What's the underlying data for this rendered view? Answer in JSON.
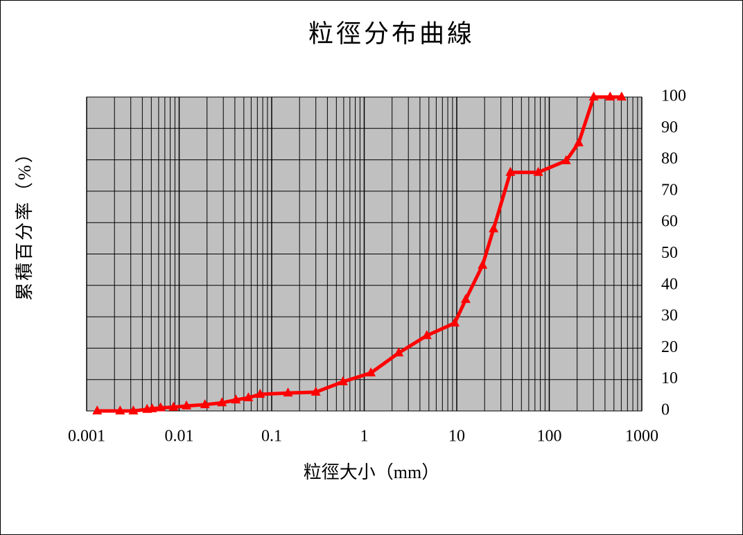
{
  "chart_data": {
    "type": "line",
    "title": "粒徑分布曲線",
    "x_label": "粒徑大小（mm）",
    "y_label": "累積百分率（%）",
    "x": [
      0.0013,
      0.0023,
      0.0032,
      0.0045,
      0.0051,
      0.0063,
      0.0087,
      0.012,
      0.019,
      0.029,
      0.041,
      0.056,
      0.075,
      0.15,
      0.3,
      0.59,
      1.18,
      2.36,
      4.75,
      9.5,
      12.5,
      19,
      25,
      38,
      76,
      152,
      208,
      302,
      455,
      605
    ],
    "values": [
      0,
      0,
      0,
      0.5,
      0.7,
      1,
      1.2,
      1.6,
      2,
      2.6,
      3.5,
      4.2,
      5.3,
      5.7,
      6,
      9.3,
      12.1,
      18.5,
      24,
      28,
      35.5,
      46.4,
      58,
      76,
      76,
      79.7,
      85.4,
      100,
      100,
      100
    ],
    "color": "#ff0000",
    "background": "#c0c0c0",
    "xscale": "log",
    "xlim": [
      0.001,
      1000
    ],
    "xticks": [
      0.001,
      0.01,
      0.1,
      1,
      10,
      100,
      1000
    ],
    "ylim": [
      0,
      100
    ],
    "yticks": [
      0,
      10,
      20,
      30,
      40,
      50,
      60,
      70,
      80,
      90,
      100
    ],
    "yaxis_side": "right",
    "grid": true
  }
}
